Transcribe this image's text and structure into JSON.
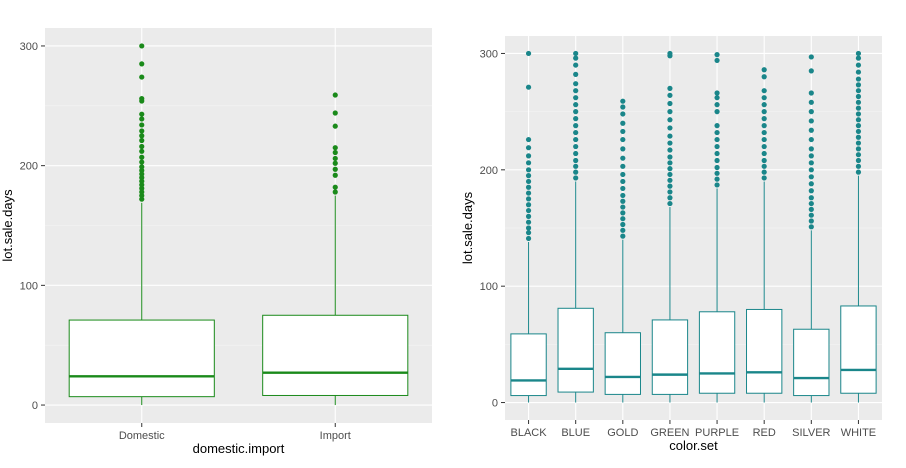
{
  "chart_data": [
    {
      "type": "box",
      "xlabel": "domestic.import",
      "ylabel": "lot.sale.days",
      "categories": [
        "Domestic",
        "Import"
      ],
      "ylim": [
        0,
        300
      ],
      "yticks": [
        0,
        100,
        200,
        300
      ],
      "color": "#1a8a1a",
      "boxes": [
        {
          "category": "Domestic",
          "min": 0,
          "q1": 7,
          "median": 24,
          "q3": 71,
          "max": 169,
          "outliers": [
            172,
            175,
            178,
            181,
            184,
            187,
            190,
            193,
            196,
            199,
            203,
            207,
            212,
            216,
            221,
            225,
            229,
            234,
            239,
            243,
            254,
            256,
            274,
            285,
            300
          ]
        },
        {
          "category": "Import",
          "min": 0,
          "q1": 8,
          "median": 27,
          "q3": 75,
          "max": 175,
          "outliers": [
            178,
            182,
            192,
            197,
            202,
            206,
            211,
            215,
            233,
            244,
            259
          ]
        }
      ]
    },
    {
      "type": "box",
      "xlabel": "color.set",
      "ylabel": "lot.sale.days",
      "categories": [
        "BLACK",
        "BLUE",
        "GOLD",
        "GREEN",
        "PURPLE",
        "RED",
        "SILVER",
        "WHITE"
      ],
      "ylim": [
        0,
        300
      ],
      "yticks": [
        0,
        100,
        200,
        300
      ],
      "color": "#1a868a",
      "boxes": [
        {
          "category": "BLACK",
          "min": 0,
          "q1": 6,
          "median": 19,
          "q3": 59,
          "max": 138,
          "outliers": [
            141,
            146,
            150,
            155,
            160,
            165,
            170,
            175,
            180,
            185,
            190,
            195,
            200,
            206,
            212,
            219,
            226,
            271,
            300
          ]
        },
        {
          "category": "BLUE",
          "min": 0,
          "q1": 9,
          "median": 29,
          "q3": 81,
          "max": 190,
          "outliers": [
            193,
            198,
            203,
            208,
            214,
            220,
            226,
            232,
            238,
            244,
            250,
            256,
            262,
            268,
            274,
            282,
            290,
            296,
            300
          ]
        },
        {
          "category": "GOLD",
          "min": 0,
          "q1": 7,
          "median": 22,
          "q3": 60,
          "max": 140,
          "outliers": [
            143,
            148,
            153,
            158,
            163,
            168,
            173,
            178,
            184,
            190,
            196,
            203,
            210,
            218,
            226,
            233,
            240,
            248,
            254,
            259
          ]
        },
        {
          "category": "GREEN",
          "min": 0,
          "q1": 7,
          "median": 24,
          "q3": 71,
          "max": 168,
          "outliers": [
            171,
            176,
            181,
            186,
            191,
            196,
            201,
            206,
            211,
            217,
            223,
            229,
            236,
            243,
            250,
            257,
            264,
            270,
            298,
            300
          ]
        },
        {
          "category": "PURPLE",
          "min": 0,
          "q1": 8,
          "median": 25,
          "q3": 78,
          "max": 184,
          "outliers": [
            187,
            192,
            197,
            202,
            208,
            214,
            220,
            226,
            232,
            238,
            250,
            256,
            262,
            266,
            294,
            299
          ]
        },
        {
          "category": "RED",
          "min": 0,
          "q1": 8,
          "median": 26,
          "q3": 80,
          "max": 190,
          "outliers": [
            193,
            198,
            203,
            208,
            214,
            220,
            226,
            232,
            238,
            244,
            250,
            256,
            262,
            268,
            280,
            286
          ]
        },
        {
          "category": "SILVER",
          "min": 0,
          "q1": 6,
          "median": 21,
          "q3": 63,
          "max": 148,
          "outliers": [
            151,
            156,
            161,
            166,
            171,
            176,
            182,
            188,
            194,
            200,
            206,
            212,
            218,
            226,
            234,
            242,
            250,
            258,
            266,
            285,
            297
          ]
        },
        {
          "category": "WHITE",
          "min": 0,
          "q1": 8,
          "median": 28,
          "q3": 83,
          "max": 195,
          "outliers": [
            198,
            203,
            208,
            213,
            218,
            223,
            228,
            233,
            238,
            243,
            248,
            253,
            258,
            263,
            268,
            273,
            278,
            284,
            290,
            296,
            300
          ]
        }
      ]
    }
  ]
}
